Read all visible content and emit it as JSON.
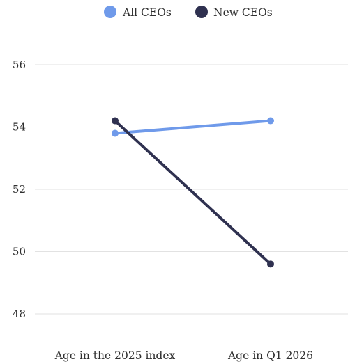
{
  "chart_data": {
    "type": "line",
    "categories": [
      "Age in the 2025 index",
      "Age in Q1 2026"
    ],
    "series": [
      {
        "name": "All CEOs",
        "values": [
          53.8,
          54.2
        ],
        "color": "#6f9aea"
      },
      {
        "name": "New CEOs",
        "values": [
          54.2,
          49.6
        ],
        "color": "#2f3150"
      }
    ],
    "y_ticks": [
      "56",
      "54",
      "52",
      "50",
      "48"
    ],
    "ylim": [
      48,
      56
    ],
    "grid": true,
    "legend_position": "top-center"
  }
}
